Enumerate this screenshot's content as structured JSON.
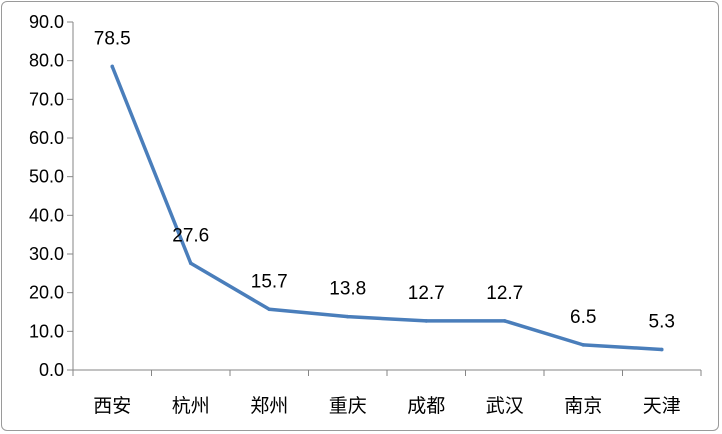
{
  "chart_data": {
    "type": "line",
    "title": "",
    "xlabel": "",
    "ylabel": "",
    "categories": [
      "西安",
      "杭州",
      "郑州",
      "重庆",
      "成都",
      "武汉",
      "南京",
      "天津"
    ],
    "series": [
      {
        "values": [
          78.5,
          27.6,
          15.7,
          13.8,
          12.7,
          12.7,
          6.5,
          5.3
        ]
      }
    ],
    "data_labels": [
      "78.5",
      "27.6",
      "15.7",
      "13.8",
      "12.7",
      "12.7",
      "6.5",
      "5.3"
    ],
    "ylim": [
      0,
      90
    ],
    "yticks": [
      "0.0",
      "10.0",
      "20.0",
      "30.0",
      "40.0",
      "50.0",
      "60.0",
      "70.0",
      "80.0",
      "90.0"
    ],
    "grid": false,
    "legend": "none",
    "line_color": "#4a7ebb"
  }
}
